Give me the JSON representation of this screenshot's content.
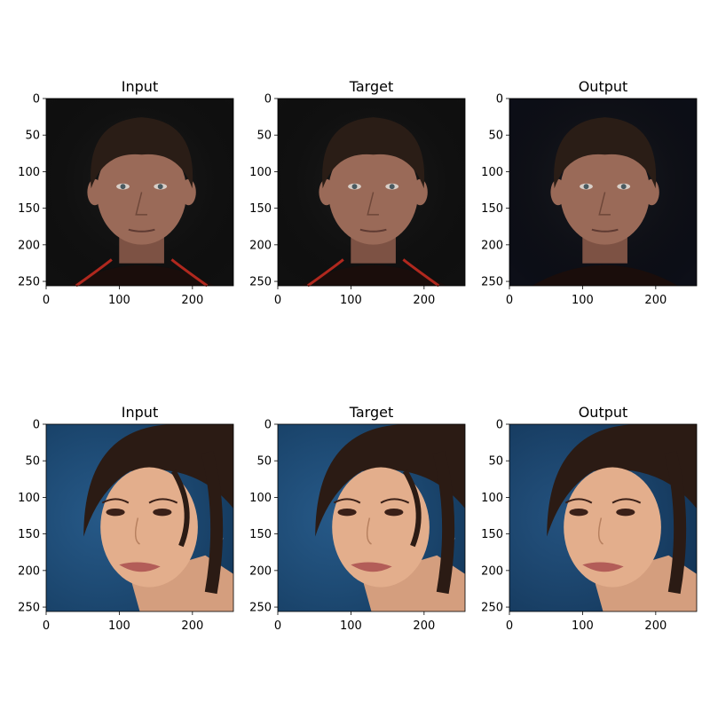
{
  "figure": {
    "rows": [
      {
        "subject": "man",
        "panels": [
          {
            "title": "Input",
            "variant": "input"
          },
          {
            "title": "Target",
            "variant": "target"
          },
          {
            "title": "Output",
            "variant": "output"
          }
        ]
      },
      {
        "subject": "woman",
        "panels": [
          {
            "title": "Input",
            "variant": "input"
          },
          {
            "title": "Target",
            "variant": "target"
          },
          {
            "title": "Output",
            "variant": "output"
          }
        ]
      }
    ],
    "axis_range": [
      0,
      256
    ],
    "x_ticks": [
      "0",
      "100",
      "200"
    ],
    "y_ticks": [
      "0",
      "50",
      "100",
      "150",
      "200",
      "250"
    ],
    "colors": {
      "man_bg": "#101010",
      "man_bg_output": "#0d0f18",
      "man_skin": "#9a6a58",
      "man_hair": "#2a1d16",
      "man_shirt": "#1a0d0b",
      "man_stripe": "#b0281e",
      "woman_bg": "#1f4d78",
      "woman_bg_output": "#1a3f66",
      "woman_skin": "#e3ae8c",
      "woman_hair": "#2b1b14",
      "woman_lips": "#b35d58"
    }
  }
}
